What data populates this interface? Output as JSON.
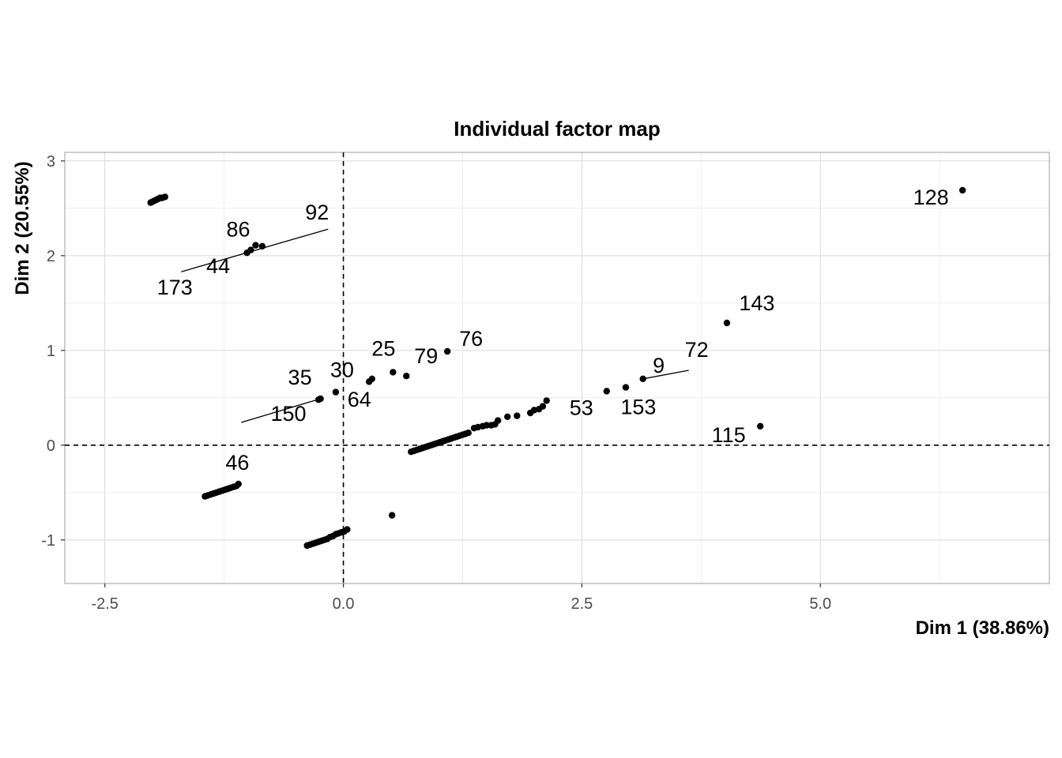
{
  "chart_data": {
    "type": "scatter",
    "title": "Individual factor map",
    "xlabel": "Dim 1 (38.86%)",
    "ylabel": "Dim 2 (20.55%)",
    "xlim": [
      -2.92,
      7.4
    ],
    "ylim": [
      -1.46,
      3.09
    ],
    "x_ticks": [
      -2.5,
      0.0,
      2.5,
      5.0
    ],
    "x_tick_labels": [
      "-2.5",
      "0.0",
      "2.5",
      "5.0"
    ],
    "y_ticks": [
      -1,
      0,
      1,
      2,
      3
    ],
    "y_tick_labels": [
      "-1",
      "0",
      "1",
      "2",
      "3"
    ],
    "grid": true,
    "reference_lines": {
      "x": 0,
      "y": 0,
      "style": "dashed"
    },
    "labeled_points": [
      {
        "label": "128",
        "x": 6.49,
        "y": 2.69
      },
      {
        "label": "143",
        "x": 4.02,
        "y": 1.29
      },
      {
        "label": "72",
        "x": 3.62,
        "y": 0.79
      },
      {
        "label": "9",
        "x": 3.14,
        "y": 0.7
      },
      {
        "label": "153",
        "x": 2.96,
        "y": 0.61
      },
      {
        "label": "53",
        "x": 2.76,
        "y": 0.57
      },
      {
        "label": "115",
        "x": 4.37,
        "y": 0.2
      },
      {
        "label": "76",
        "x": 1.09,
        "y": 0.99
      },
      {
        "label": "79",
        "x": 0.66,
        "y": 0.73
      },
      {
        "label": "25",
        "x": 0.52,
        "y": 0.77
      },
      {
        "label": "64",
        "x": 0.3,
        "y": 0.7
      },
      {
        "label": "30",
        "x": -0.08,
        "y": 0.56
      },
      {
        "label": "35",
        "x": -0.24,
        "y": 0.49
      },
      {
        "label": "150",
        "x": -0.22,
        "y": 0.48
      },
      {
        "label": "46",
        "x": -1.07,
        "y": 0.24
      },
      {
        "label": "92",
        "x": -0.16,
        "y": 2.28
      },
      {
        "label": "86",
        "x": -0.82,
        "y": 2.11
      },
      {
        "label": "44",
        "x": -1.03,
        "y": 2.03
      },
      {
        "label": "173",
        "x": -1.7,
        "y": 1.83
      }
    ],
    "points": [
      [
        6.49,
        2.69
      ],
      [
        4.02,
        1.29
      ],
      [
        4.37,
        0.2
      ],
      [
        3.14,
        0.7
      ],
      [
        2.96,
        0.61
      ],
      [
        2.76,
        0.57
      ],
      [
        1.09,
        0.99
      ],
      [
        0.66,
        0.73
      ],
      [
        0.52,
        0.77
      ],
      [
        0.27,
        0.67
      ],
      [
        0.3,
        0.7
      ],
      [
        -0.08,
        0.56
      ],
      [
        -0.24,
        0.49
      ],
      [
        -0.26,
        0.48
      ],
      [
        0.51,
        -0.74
      ],
      [
        -0.92,
        2.11
      ],
      [
        -0.85,
        2.1
      ],
      [
        -0.97,
        2.06
      ],
      [
        -1.01,
        2.03
      ],
      [
        -2.02,
        2.56
      ],
      [
        -2.0,
        2.57
      ],
      [
        -1.98,
        2.58
      ],
      [
        -1.96,
        2.59
      ],
      [
        -1.94,
        2.6
      ],
      [
        -1.92,
        2.61
      ],
      [
        -1.9,
        2.61
      ],
      [
        -1.87,
        2.62
      ],
      [
        -1.45,
        -0.54
      ],
      [
        -1.42,
        -0.53
      ],
      [
        -1.39,
        -0.52
      ],
      [
        -1.36,
        -0.51
      ],
      [
        -1.33,
        -0.5
      ],
      [
        -1.3,
        -0.49
      ],
      [
        -1.27,
        -0.48
      ],
      [
        -1.24,
        -0.47
      ],
      [
        -1.21,
        -0.46
      ],
      [
        -1.18,
        -0.45
      ],
      [
        -1.15,
        -0.44
      ],
      [
        -1.12,
        -0.43
      ],
      [
        -1.1,
        -0.41
      ],
      [
        -0.38,
        -1.06
      ],
      [
        -0.35,
        -1.05
      ],
      [
        -0.32,
        -1.04
      ],
      [
        -0.29,
        -1.03
      ],
      [
        -0.26,
        -1.02
      ],
      [
        -0.23,
        -1.01
      ],
      [
        -0.2,
        -1.0
      ],
      [
        -0.17,
        -0.99
      ],
      [
        -0.14,
        -0.97
      ],
      [
        -0.11,
        -0.96
      ],
      [
        -0.08,
        -0.94
      ],
      [
        -0.05,
        -0.93
      ],
      [
        -0.02,
        -0.92
      ],
      [
        0.01,
        -0.91
      ],
      [
        0.04,
        -0.89
      ],
      [
        0.71,
        -0.07
      ],
      [
        0.74,
        -0.06
      ],
      [
        0.77,
        -0.05
      ],
      [
        0.8,
        -0.04
      ],
      [
        0.83,
        -0.03
      ],
      [
        0.86,
        -0.02
      ],
      [
        0.89,
        -0.01
      ],
      [
        0.92,
        0.0
      ],
      [
        0.95,
        0.01
      ],
      [
        0.98,
        0.02
      ],
      [
        1.01,
        0.03
      ],
      [
        1.04,
        0.04
      ],
      [
        1.07,
        0.05
      ],
      [
        1.1,
        0.06
      ],
      [
        1.13,
        0.07
      ],
      [
        1.16,
        0.08
      ],
      [
        1.19,
        0.09
      ],
      [
        1.22,
        0.1
      ],
      [
        1.25,
        0.11
      ],
      [
        1.28,
        0.12
      ],
      [
        1.31,
        0.13
      ],
      [
        1.37,
        0.18
      ],
      [
        1.41,
        0.19
      ],
      [
        1.46,
        0.2
      ],
      [
        1.5,
        0.21
      ],
      [
        1.55,
        0.21
      ],
      [
        1.59,
        0.22
      ],
      [
        1.62,
        0.26
      ],
      [
        1.72,
        0.3
      ],
      [
        1.82,
        0.31
      ],
      [
        1.96,
        0.34
      ],
      [
        2.0,
        0.37
      ],
      [
        2.05,
        0.38
      ],
      [
        2.09,
        0.41
      ],
      [
        2.13,
        0.47
      ]
    ]
  }
}
